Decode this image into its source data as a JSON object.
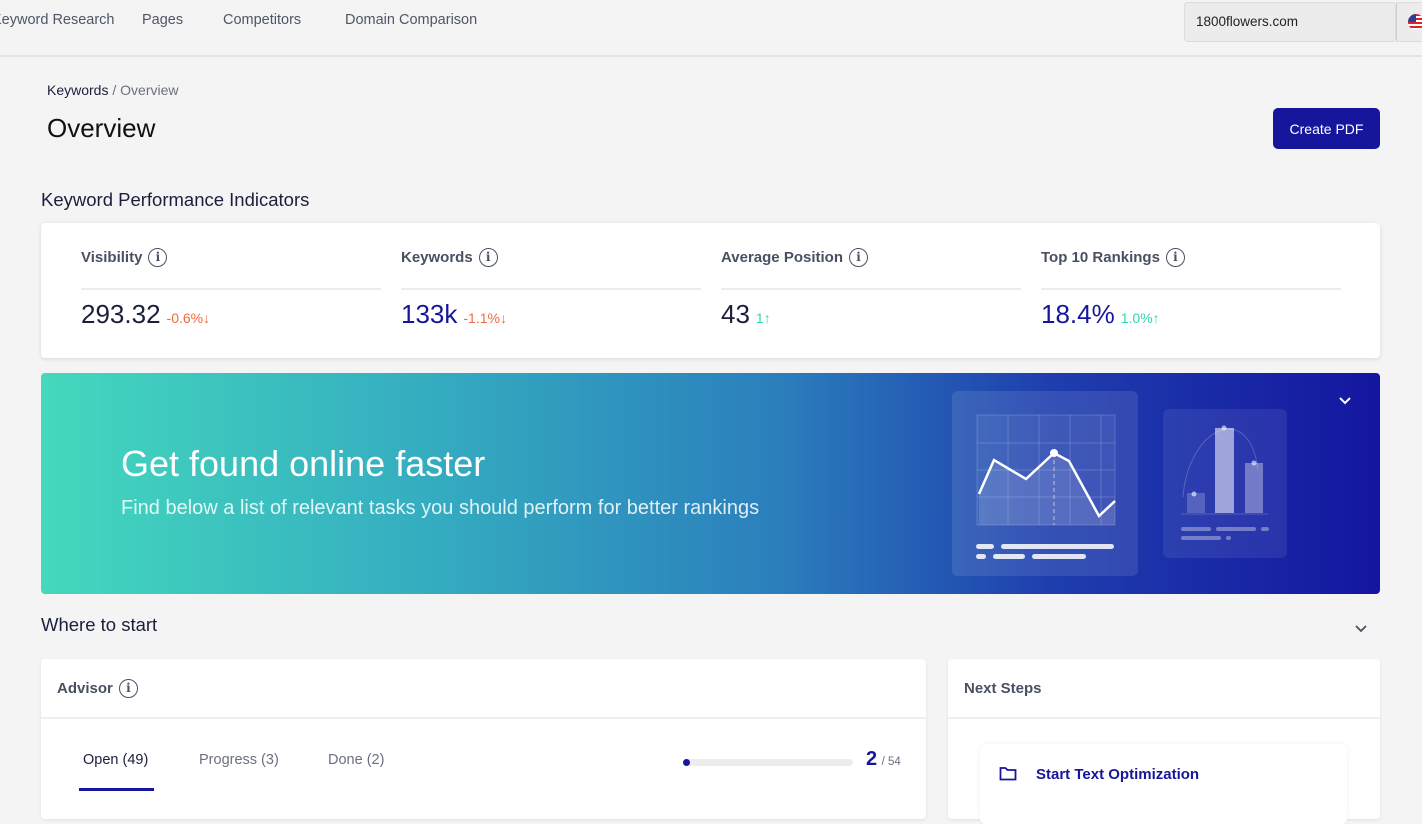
{
  "nav": {
    "items": [
      "Keyword Research",
      "Pages",
      "Competitors",
      "Domain Comparison"
    ],
    "domain": "1800flowers.com",
    "flag": "us-flag-icon"
  },
  "breadcrumb": {
    "parent": "Keywords",
    "sep": "/",
    "current": "Overview"
  },
  "page": {
    "title": "Overview",
    "create_pdf": "Create PDF"
  },
  "kpi": {
    "heading": "Keyword Performance Indicators",
    "items": [
      {
        "label": "Visibility",
        "value": "293.32",
        "change": "-0.6%",
        "dir": "down",
        "value_color": "#1b1f3b",
        "change_color": "#f26a3c"
      },
      {
        "label": "Keywords",
        "value": "133k",
        "change": "-1.1%",
        "dir": "down",
        "value_color": "#16169c",
        "change_color": "#f26a3c"
      },
      {
        "label": "Average Position",
        "value": "43",
        "change": "1",
        "dir": "up",
        "value_color": "#1b1f3b",
        "change_color": "#2fd6b0"
      },
      {
        "label": "Top 10 Rankings",
        "value": "18.4%",
        "change": "1.0%",
        "dir": "up",
        "value_color": "#16169c",
        "change_color": "#2fd6b0"
      }
    ]
  },
  "banner": {
    "heading": "Get found online faster",
    "subtext": "Find below a list of relevant tasks you should perform for better rankings"
  },
  "where": {
    "heading": "Where to start"
  },
  "advisor": {
    "title": "Advisor",
    "tabs": [
      "Open (49)",
      "Progress (3)",
      "Done (2)"
    ],
    "active_tab": 0,
    "done": "2",
    "total": "/ 54",
    "progress": 0.037
  },
  "next_steps": {
    "title": "Next Steps",
    "item": "Start Text Optimization"
  },
  "colors": {
    "accent": "#16169c",
    "down": "#f26a3c",
    "up": "#2fd6b0"
  }
}
